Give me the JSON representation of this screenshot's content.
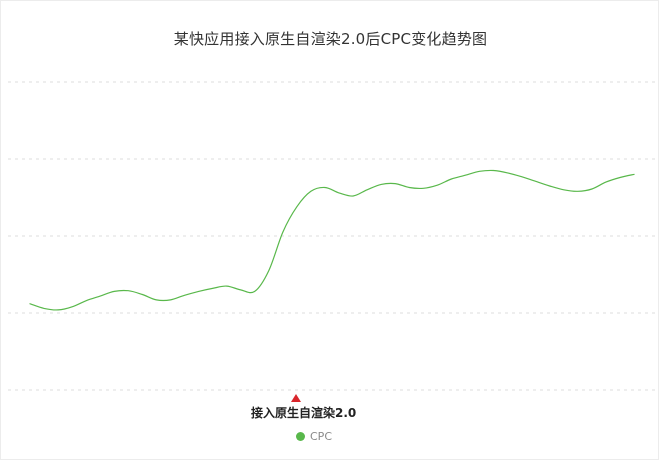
{
  "chart_data": {
    "type": "line",
    "title": "某快应用接入原生自渲染2.0后CPC变化趋势图",
    "xlabel": "",
    "ylabel": "",
    "x": [
      0,
      1,
      2,
      3,
      4,
      5,
      6,
      7,
      8,
      9,
      10,
      11,
      12,
      13,
      14,
      15,
      16,
      17,
      18,
      19,
      20,
      21,
      22,
      23,
      24,
      25,
      26,
      27,
      28,
      29,
      30,
      31,
      32,
      33,
      34,
      35,
      36,
      37,
      38,
      39,
      40,
      41,
      42,
      43
    ],
    "series": [
      {
        "name": "CPC",
        "values": [
          1.12,
          1.06,
          1.04,
          1.08,
          1.16,
          1.22,
          1.28,
          1.29,
          1.24,
          1.17,
          1.17,
          1.23,
          1.28,
          1.32,
          1.35,
          1.3,
          1.28,
          1.55,
          2.05,
          2.38,
          2.58,
          2.63,
          2.56,
          2.52,
          2.6,
          2.67,
          2.68,
          2.63,
          2.62,
          2.66,
          2.74,
          2.79,
          2.84,
          2.85,
          2.82,
          2.77,
          2.71,
          2.65,
          2.6,
          2.58,
          2.61,
          2.7,
          2.76,
          2.8
        ]
      }
    ],
    "ylim": [
      0,
      4.0
    ],
    "grid": true,
    "legend_position": "bottom-center",
    "annotation": {
      "text": "接入原生自渲染2.0",
      "x": 19
    },
    "colors": {
      "line": "#59b84b",
      "marker": "#d9262c",
      "grid": "#dcdcdc"
    }
  }
}
